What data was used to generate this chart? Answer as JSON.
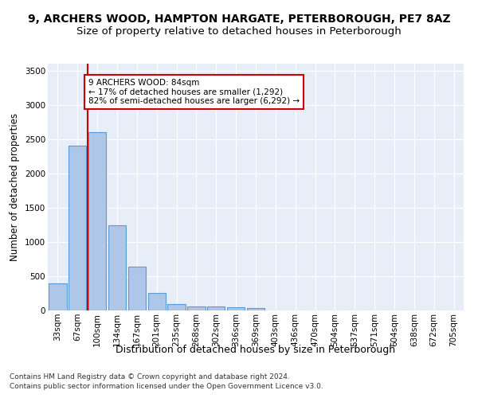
{
  "title1": "9, ARCHERS WOOD, HAMPTON HARGATE, PETERBOROUGH, PE7 8AZ",
  "title2": "Size of property relative to detached houses in Peterborough",
  "xlabel": "Distribution of detached houses by size in Peterborough",
  "ylabel": "Number of detached properties",
  "categories": [
    "33sqm",
    "67sqm",
    "100sqm",
    "134sqm",
    "167sqm",
    "201sqm",
    "235sqm",
    "268sqm",
    "302sqm",
    "336sqm",
    "369sqm",
    "403sqm",
    "436sqm",
    "470sqm",
    "504sqm",
    "537sqm",
    "571sqm",
    "604sqm",
    "638sqm",
    "672sqm",
    "705sqm"
  ],
  "values": [
    390,
    2400,
    2600,
    1240,
    640,
    255,
    95,
    60,
    55,
    45,
    35,
    0,
    0,
    0,
    0,
    0,
    0,
    0,
    0,
    0,
    0
  ],
  "bar_color": "#aec6e8",
  "bar_edge_color": "#5b9bd5",
  "vline_x": 1.5,
  "vline_color": "#cc0000",
  "annotation_line1": "9 ARCHERS WOOD: 84sqm",
  "annotation_line2": "← 17% of detached houses are smaller (1,292)",
  "annotation_line3": "82% of semi-detached houses are larger (6,292) →",
  "annotation_box_color": "#ffffff",
  "annotation_box_edge": "#cc0000",
  "ylim": [
    0,
    3600
  ],
  "yticks": [
    0,
    500,
    1000,
    1500,
    2000,
    2500,
    3000,
    3500
  ],
  "background_color": "#e8eef7",
  "footer_line1": "Contains HM Land Registry data © Crown copyright and database right 2024.",
  "footer_line2": "Contains public sector information licensed under the Open Government Licence v3.0.",
  "title1_fontsize": 10,
  "title2_fontsize": 9.5,
  "xlabel_fontsize": 9,
  "ylabel_fontsize": 8.5,
  "tick_fontsize": 7.5,
  "annot_fontsize": 7.5,
  "footer_fontsize": 6.5
}
